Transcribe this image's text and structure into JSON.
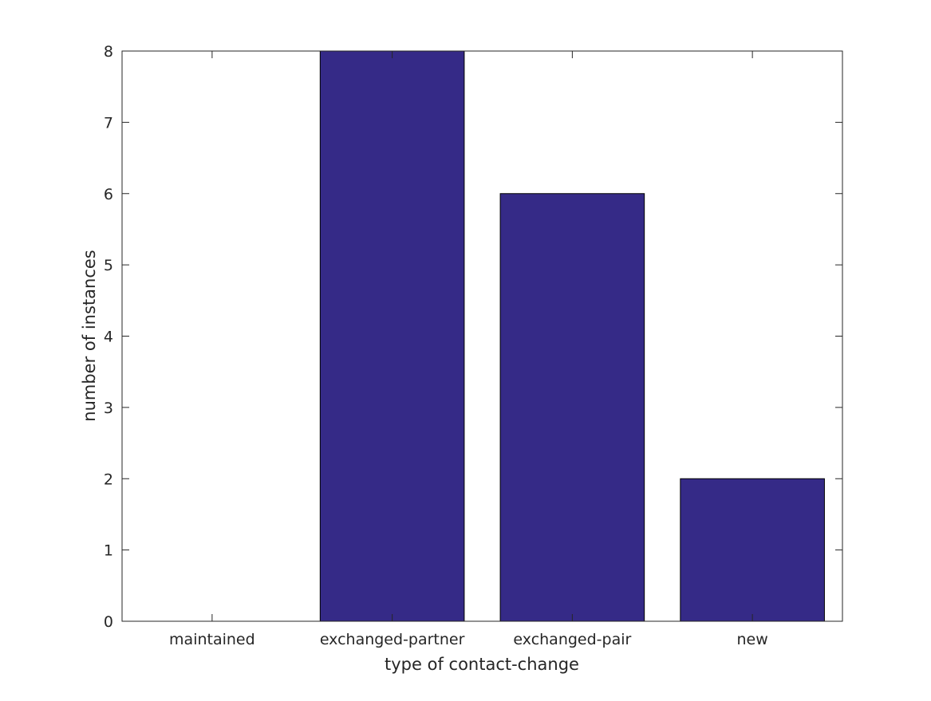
{
  "chart_data": {
    "type": "bar",
    "categories": [
      "maintained",
      "exchanged-partner",
      "exchanged-pair",
      "new"
    ],
    "values": [
      0,
      8,
      6,
      2
    ],
    "title": "",
    "xlabel": "type of contact-change",
    "ylabel": "number of instances",
    "ylim": [
      0,
      8
    ],
    "yticks": [
      0,
      1,
      2,
      3,
      4,
      5,
      6,
      7,
      8
    ],
    "bar_color": "#352a87",
    "bar_edge_color": "#000000",
    "grid": false,
    "legend": "none"
  }
}
